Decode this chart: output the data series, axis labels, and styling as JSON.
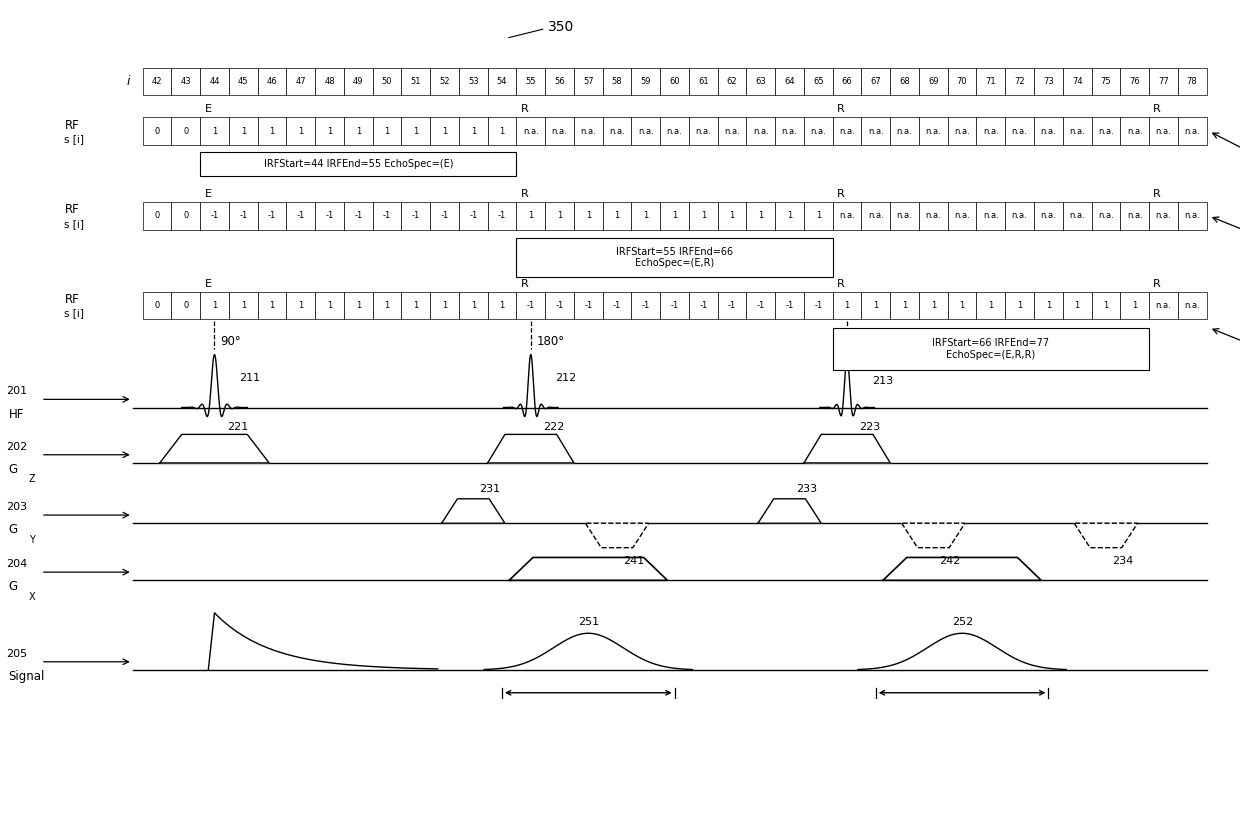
{
  "fig_width": 12.4,
  "fig_height": 8.15,
  "bg_color": "#ffffff",
  "i_values": [
    42,
    43,
    44,
    45,
    46,
    47,
    48,
    49,
    50,
    51,
    52,
    53,
    54,
    55,
    56,
    57,
    58,
    59,
    60,
    61,
    62,
    63,
    64,
    65,
    66,
    67,
    68,
    69,
    70,
    71,
    72,
    73,
    74,
    75,
    76,
    77,
    78
  ],
  "row1_vals": [
    "0",
    "0",
    "1",
    "1",
    "1",
    "1",
    "1",
    "1",
    "1",
    "1",
    "1",
    "1",
    "1",
    "n.a.",
    "n.a.",
    "n.a.",
    "n.a.",
    "n.a.",
    "n.a.",
    "n.a.",
    "n.a.",
    "n.a.",
    "n.a.",
    "n.a.",
    "n.a.",
    "n.a.",
    "n.a.",
    "n.a.",
    "n.a.",
    "n.a.",
    "n.a.",
    "n.a.",
    "n.a.",
    "n.a.",
    "n.a.",
    "n.a.",
    "n.a."
  ],
  "row2_vals": [
    "0",
    "0",
    "-1",
    "-1",
    "-1",
    "-1",
    "-1",
    "-1",
    "-1",
    "-1",
    "-1",
    "-1",
    "-1",
    "1",
    "1",
    "1",
    "1",
    "1",
    "1",
    "1",
    "1",
    "1",
    "1",
    "1",
    "n.a.",
    "n.a.",
    "n.a.",
    "n.a.",
    "n.a.",
    "n.a.",
    "n.a.",
    "n.a.",
    "n.a.",
    "n.a.",
    "n.a.",
    "n.a.",
    "n.a."
  ],
  "row3_vals": [
    "0",
    "0",
    "1",
    "1",
    "1",
    "1",
    "1",
    "1",
    "1",
    "1",
    "1",
    "1",
    "1",
    "-1",
    "-1",
    "-1",
    "-1",
    "-1",
    "-1",
    "-1",
    "-1",
    "-1",
    "-1",
    "-1",
    "1",
    "1",
    "1",
    "1",
    "1",
    "1",
    "1",
    "1",
    "1",
    "1",
    "1",
    "n.a.",
    "n.a."
  ],
  "box1_text": "IRFStart=44 IRFEnd=55 EchoSpec=(E)",
  "box2_text": "IRFStart=55 IRFEnd=66\nEchoSpec=(E,R)",
  "box3_text": "IRFStart=66 IRFEnd=77\nEchoSpec=(E,R,R)",
  "echo1_num": "251",
  "echo2_num": "252"
}
